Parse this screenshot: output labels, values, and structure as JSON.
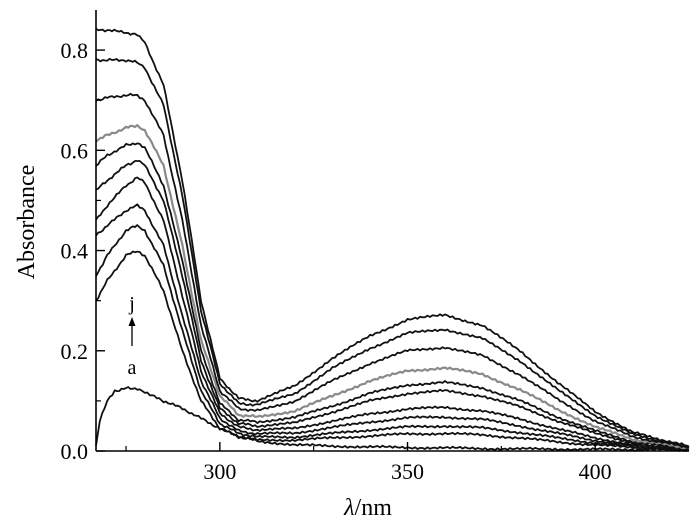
{
  "chart_data": {
    "type": "line",
    "title": "",
    "xlabel_symbol": "λ",
    "xlabel_unit": "/nm",
    "ylabel": "Absorbance",
    "xlim": [
      267,
      425
    ],
    "ylim": [
      0.0,
      0.88
    ],
    "x_ticks": [
      300,
      350,
      400
    ],
    "x_tick_labels": [
      "300",
      "350",
      "400"
    ],
    "y_ticks": [
      0.0,
      0.2,
      0.4,
      0.6,
      0.8
    ],
    "y_tick_labels": [
      "0.0",
      "0.2",
      "0.4",
      "0.6",
      "0.8"
    ],
    "grid": false,
    "legend": "none",
    "annotation": {
      "top_label": "j",
      "bottom_label": "a",
      "arrow": "up"
    },
    "colors": {
      "dark": "#111111",
      "highlight": "#8a8a8a"
    },
    "series": [
      {
        "id": "a",
        "color": "dark",
        "x": [
          267,
          268,
          270,
          272,
          275,
          278,
          282,
          285,
          290,
          295,
          300,
          305,
          310,
          320,
          330,
          340,
          350,
          360,
          370,
          380,
          390,
          400,
          410,
          425
        ],
        "y": [
          0.01,
          0.06,
          0.1,
          0.12,
          0.125,
          0.125,
          0.11,
          0.1,
          0.085,
          0.065,
          0.045,
          0.03,
          0.02,
          0.012,
          0.01,
          0.008,
          0.007,
          0.006,
          0.005,
          0.004,
          0.004,
          0.003,
          0.003,
          0.002
        ]
      },
      {
        "id": "b",
        "color": "dark",
        "x": [
          267,
          270,
          275,
          278,
          280,
          285,
          290,
          295,
          300,
          305,
          310,
          320,
          330,
          340,
          350,
          360,
          370,
          380,
          390,
          400,
          410,
          425
        ],
        "y": [
          0.3,
          0.34,
          0.39,
          0.4,
          0.39,
          0.32,
          0.2,
          0.1,
          0.045,
          0.028,
          0.022,
          0.022,
          0.026,
          0.03,
          0.034,
          0.035,
          0.032,
          0.026,
          0.018,
          0.012,
          0.007,
          0.002
        ]
      },
      {
        "id": "c",
        "color": "dark",
        "x": [
          267,
          270,
          275,
          278,
          280,
          285,
          290,
          295,
          300,
          305,
          310,
          320,
          330,
          340,
          350,
          360,
          370,
          380,
          390,
          400,
          410,
          425
        ],
        "y": [
          0.35,
          0.39,
          0.44,
          0.45,
          0.44,
          0.37,
          0.24,
          0.12,
          0.055,
          0.035,
          0.028,
          0.028,
          0.035,
          0.042,
          0.048,
          0.05,
          0.046,
          0.037,
          0.026,
          0.016,
          0.009,
          0.003
        ]
      },
      {
        "id": "d",
        "color": "dark",
        "x": [
          267,
          270,
          275,
          278,
          280,
          285,
          290,
          295,
          300,
          305,
          310,
          320,
          330,
          340,
          350,
          360,
          370,
          380,
          390,
          400,
          410,
          425
        ],
        "y": [
          0.43,
          0.45,
          0.48,
          0.49,
          0.48,
          0.41,
          0.27,
          0.14,
          0.065,
          0.04,
          0.034,
          0.036,
          0.047,
          0.058,
          0.066,
          0.068,
          0.063,
          0.05,
          0.035,
          0.021,
          0.011,
          0.003
        ]
      },
      {
        "id": "e",
        "color": "dark",
        "x": [
          267,
          270,
          275,
          278,
          280,
          285,
          290,
          295,
          300,
          305,
          310,
          320,
          330,
          340,
          350,
          360,
          370,
          380,
          390,
          400,
          410,
          425
        ],
        "y": [
          0.46,
          0.49,
          0.53,
          0.545,
          0.535,
          0.46,
          0.31,
          0.16,
          0.075,
          0.048,
          0.042,
          0.045,
          0.06,
          0.074,
          0.084,
          0.087,
          0.08,
          0.064,
          0.044,
          0.026,
          0.013,
          0.004
        ]
      },
      {
        "id": "f",
        "color": "dark",
        "x": [
          267,
          270,
          275,
          278,
          280,
          285,
          290,
          295,
          300,
          305,
          310,
          320,
          330,
          340,
          350,
          360,
          370,
          380,
          390,
          400,
          410,
          425
        ],
        "y": [
          0.52,
          0.54,
          0.57,
          0.58,
          0.57,
          0.5,
          0.35,
          0.18,
          0.085,
          0.055,
          0.05,
          0.056,
          0.078,
          0.1,
          0.115,
          0.12,
          0.11,
          0.088,
          0.06,
          0.035,
          0.017,
          0.005
        ]
      },
      {
        "id": "g",
        "color": "dark",
        "x": [
          267,
          270,
          275,
          278,
          280,
          285,
          290,
          295,
          300,
          305,
          310,
          320,
          330,
          340,
          350,
          360,
          370,
          380,
          390,
          400,
          410,
          425
        ],
        "y": [
          0.57,
          0.59,
          0.61,
          0.615,
          0.605,
          0.53,
          0.38,
          0.2,
          0.095,
          0.062,
          0.058,
          0.067,
          0.09,
          0.115,
          0.132,
          0.137,
          0.126,
          0.1,
          0.068,
          0.04,
          0.019,
          0.005
        ]
      },
      {
        "id": "h",
        "color": "highlight",
        "x": [
          267,
          270,
          275,
          278,
          280,
          285,
          290,
          295,
          300,
          305,
          310,
          320,
          330,
          340,
          350,
          360,
          370,
          380,
          390,
          400,
          410,
          425
        ],
        "y": [
          0.62,
          0.63,
          0.645,
          0.65,
          0.64,
          0.57,
          0.41,
          0.22,
          0.11,
          0.072,
          0.068,
          0.08,
          0.11,
          0.14,
          0.16,
          0.166,
          0.153,
          0.122,
          0.083,
          0.048,
          0.023,
          0.006
        ]
      },
      {
        "id": "i",
        "color": "dark",
        "x": [
          267,
          270,
          275,
          278,
          280,
          285,
          290,
          295,
          300,
          305,
          310,
          320,
          330,
          340,
          350,
          360,
          370,
          380,
          390,
          400,
          410,
          425
        ],
        "y": [
          0.7,
          0.705,
          0.71,
          0.71,
          0.7,
          0.63,
          0.46,
          0.25,
          0.12,
          0.085,
          0.08,
          0.1,
          0.14,
          0.175,
          0.2,
          0.207,
          0.19,
          0.152,
          0.103,
          0.06,
          0.028,
          0.007
        ]
      },
      {
        "id": "j1",
        "color": "dark",
        "x": [
          267,
          270,
          275,
          278,
          280,
          285,
          290,
          295,
          300,
          305,
          310,
          320,
          330,
          340,
          350,
          360,
          370,
          380,
          390,
          400,
          410,
          425
        ],
        "y": [
          0.78,
          0.78,
          0.78,
          0.775,
          0.765,
          0.69,
          0.51,
          0.28,
          0.135,
          0.095,
          0.092,
          0.115,
          0.165,
          0.205,
          0.235,
          0.243,
          0.224,
          0.18,
          0.122,
          0.071,
          0.033,
          0.008
        ]
      },
      {
        "id": "j",
        "color": "dark",
        "x": [
          267,
          270,
          275,
          278,
          280,
          285,
          290,
          295,
          300,
          305,
          310,
          320,
          330,
          340,
          350,
          360,
          370,
          380,
          390,
          400,
          410,
          425
        ],
        "y": [
          0.84,
          0.84,
          0.835,
          0.83,
          0.815,
          0.73,
          0.54,
          0.3,
          0.145,
          0.105,
          0.1,
          0.13,
          0.185,
          0.23,
          0.262,
          0.272,
          0.25,
          0.2,
          0.136,
          0.079,
          0.037,
          0.009
        ]
      }
    ]
  }
}
